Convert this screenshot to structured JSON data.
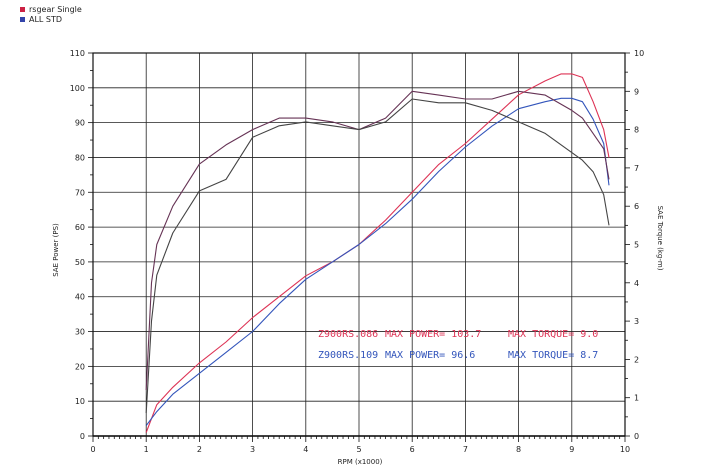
{
  "chart_data": {
    "type": "line",
    "xlabel": "RPM (x1000)",
    "ylabel_left": "SAE Power (PS)",
    "ylabel_right": "SAE Torque (kg-m)",
    "xlim": [
      0,
      10
    ],
    "ylim_left": [
      0,
      110
    ],
    "ylim_right": [
      0,
      10
    ],
    "grid": true,
    "legend_position": "top-left",
    "x_ticks": [
      "0",
      "1",
      "2",
      "3",
      "4",
      "5",
      "6",
      "7",
      "8",
      "9",
      "10"
    ],
    "y_ticks_left": [
      "0",
      "10",
      "20",
      "30",
      "40",
      "50",
      "60",
      "70",
      "80",
      "90",
      "100",
      "110"
    ],
    "y_ticks_right": [
      "0",
      "1",
      "2",
      "3",
      "4",
      "5",
      "6",
      "7",
      "8",
      "9",
      "10"
    ],
    "legend": [
      {
        "name": "rsgear Single",
        "color": "#cc2244"
      },
      {
        "name": "ALL STD",
        "color": "#3344aa"
      }
    ],
    "series": [
      {
        "name": "rsgear Single",
        "kind": "power",
        "axis": "left",
        "color": "#dd3355",
        "x": [
          1.0,
          1.2,
          1.5,
          2.0,
          2.5,
          3.0,
          3.5,
          4.0,
          4.5,
          5.0,
          5.5,
          6.0,
          6.5,
          7.0,
          7.5,
          8.0,
          8.5,
          8.8,
          9.0,
          9.2,
          9.4,
          9.6,
          9.7
        ],
        "y": [
          1,
          9,
          14,
          21,
          27,
          34,
          40,
          46,
          50,
          55,
          62,
          70,
          78,
          84,
          91,
          98,
          102,
          104,
          104,
          103,
          96,
          88,
          80
        ]
      },
      {
        "name": "ALL STD",
        "kind": "power",
        "axis": "left",
        "color": "#3355bb",
        "x": [
          1.0,
          1.2,
          1.5,
          2.0,
          2.5,
          3.0,
          3.5,
          4.0,
          4.5,
          5.0,
          5.5,
          6.0,
          6.5,
          7.0,
          7.5,
          8.0,
          8.5,
          8.8,
          9.0,
          9.2,
          9.4,
          9.6,
          9.7
        ],
        "y": [
          3,
          7,
          12,
          18,
          24,
          30,
          38,
          45,
          50,
          55,
          61,
          68,
          76,
          83,
          89,
          94,
          96,
          97,
          97,
          96,
          91,
          84,
          72
        ]
      },
      {
        "name": "rsgear Single",
        "kind": "torque",
        "axis": "right",
        "color": "#663355",
        "x": [
          1.0,
          1.1,
          1.2,
          1.5,
          2.0,
          2.5,
          3.0,
          3.5,
          4.0,
          4.5,
          5.0,
          5.5,
          6.0,
          6.5,
          7.0,
          7.5,
          8.0,
          8.5,
          9.0,
          9.2,
          9.4,
          9.6,
          9.7
        ],
        "y": [
          1.2,
          4.0,
          5.0,
          6.0,
          7.1,
          7.6,
          8.0,
          8.3,
          8.3,
          8.2,
          8.0,
          8.3,
          9.0,
          8.9,
          8.8,
          8.8,
          9.0,
          8.9,
          8.5,
          8.3,
          7.9,
          7.5,
          6.7
        ]
      },
      {
        "name": "ALL STD",
        "kind": "torque",
        "axis": "right",
        "color": "#444444",
        "x": [
          1.0,
          1.1,
          1.2,
          1.5,
          2.0,
          2.5,
          3.0,
          3.5,
          4.0,
          4.5,
          5.0,
          5.5,
          6.0,
          6.5,
          7.0,
          7.5,
          8.0,
          8.5,
          9.0,
          9.2,
          9.4,
          9.6,
          9.7
        ],
        "y": [
          0.6,
          3.0,
          4.2,
          5.3,
          6.4,
          6.7,
          7.8,
          8.1,
          8.2,
          8.1,
          8.0,
          8.2,
          8.8,
          8.7,
          8.7,
          8.5,
          8.2,
          7.9,
          7.4,
          7.2,
          6.9,
          6.3,
          5.5
        ]
      }
    ],
    "annotations": [
      {
        "model": "Z900RS.086",
        "power": "MAX POWER= 103.7",
        "torque": "MAX TORQUE= 9.0",
        "color": "#dd3355"
      },
      {
        "model": "Z900RS.109",
        "power": "MAX POWER= 96.6",
        "torque": "MAX TORQUE= 8.7",
        "color": "#3355bb"
      }
    ]
  }
}
